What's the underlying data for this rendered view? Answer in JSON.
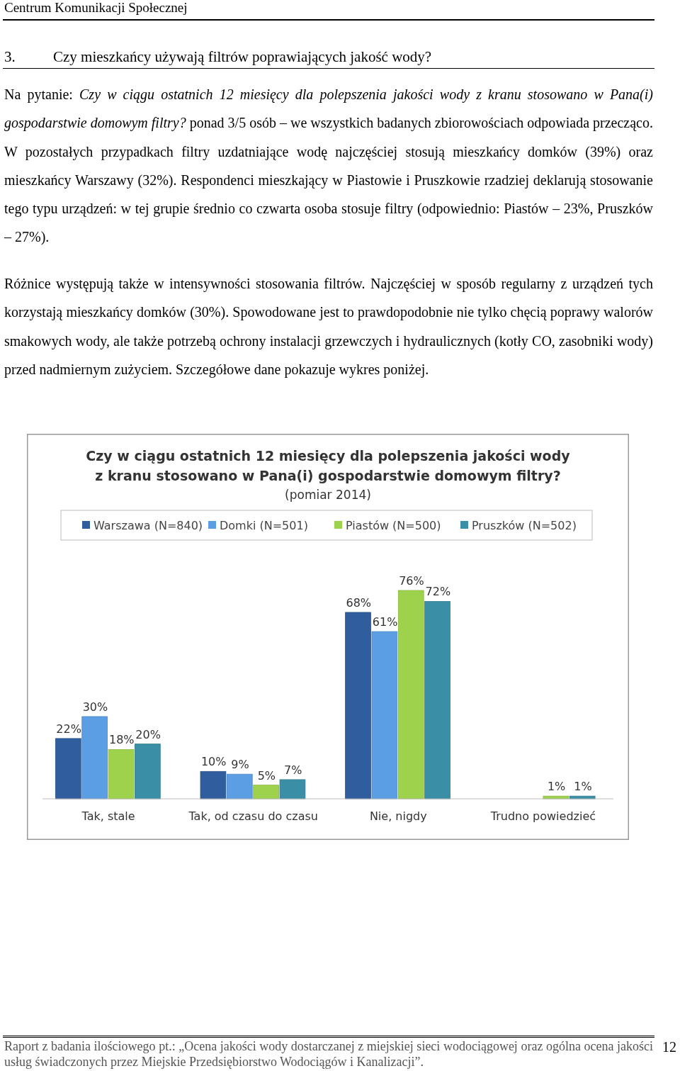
{
  "chart_data": {
    "type": "bar",
    "title": "Czy w ciągu ostatnich 12 miesięcy dla polepszenia jakości wody\nz kranu stosowano w Pana(i) gospodarstwie domowym filtry?",
    "subtitle": "(pomiar 2014)",
    "categories": [
      "Tak, stale",
      "Tak, od czasu do czasu",
      "Nie, nigdy",
      "Trudno powiedzieć"
    ],
    "series": [
      {
        "name": "Warszawa (N=840)",
        "color": "#2f5d9e",
        "values": [
          22,
          10,
          68,
          null
        ],
        "value_labels": [
          "22%",
          "10%",
          "68%",
          null
        ]
      },
      {
        "name": "Domki (N=501)",
        "color": "#5b9ee3",
        "values": [
          30,
          9,
          61,
          null
        ],
        "value_labels": [
          "30%",
          "9%",
          "61%",
          null
        ]
      },
      {
        "name": "Piastów (N=500)",
        "color": "#9fd24c",
        "values": [
          18,
          5,
          76,
          1
        ],
        "value_labels": [
          "18%",
          "5%",
          "76%",
          "1%"
        ]
      },
      {
        "name": "Pruszków (N=502)",
        "color": "#3a8ea6",
        "values": [
          20,
          7,
          72,
          1
        ],
        "value_labels": [
          "20%",
          "7%",
          "72%",
          "1%"
        ]
      }
    ],
    "legend": "top",
    "grid": false,
    "annotations": [
      "Centrum Komunikacji Społecznej",
      "3.",
      "Czy mieszkańcy używają filtrów poprawiających jakość wody?",
      "Na pytanie: ",
      "Czy w ciągu ostatnich 12 miesięcy dla polepszenia jakości wody z kranu stosowano w Pana(i) gospodarstwie domowym filtry?",
      " ponad 3/5 osób – we wszystkich badanych zbiorowościach odpowiada przecząco. W pozostałych przypadkach filtry uzdatniające wodę najczęściej stosują mieszkańcy domków (39%) oraz mieszkańcy Warszawy (32%). Respondenci mieszkający w Piastowie i Pruszkowie rzadziej deklarują stosowanie tego typu urządzeń: w tej grupie średnio co czwarta osoba stosuje filtry (odpowiednio: Piastów – 23%, Pruszków – 27%).",
      "Różnice występują także w intensywności stosowania filtrów. Najczęściej w sposób regularny z urządzeń tych korzystają mieszkańcy domków (30%). Spowodowane jest to prawdopodobnie nie tylko chęcią poprawy walorów smakowych wody, ale także potrzebą ochrony instalacji grzewczych i hydraulicznych (kotły CO, zasobniki wody) przed nadmiernym zużyciem. Szczegółowe dane pokazuje wykres poniżej.",
      "Raport z badania ilościowego pt.: „Ocena jakości wody dostarczanej z miejskiej sieci wodociągowej oraz ogólna ocena jakości usług świadczonych przez Miejskie Przedsiębiorstwo Wodociągów i Kanalizacji”.",
      "12"
    ]
  }
}
